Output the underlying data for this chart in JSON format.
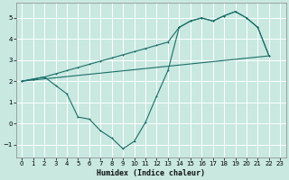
{
  "xlabel": "Humidex (Indice chaleur)",
  "bg_color": "#c8e8e0",
  "grid_color": "#ffffff",
  "line_color": "#1a6e6a",
  "xlim": [
    -0.5,
    23.5
  ],
  "ylim": [
    -1.6,
    5.7
  ],
  "xticks": [
    0,
    1,
    2,
    3,
    4,
    5,
    6,
    7,
    8,
    9,
    10,
    11,
    12,
    13,
    14,
    15,
    16,
    17,
    18,
    19,
    20,
    21,
    22,
    23
  ],
  "yticks": [
    -1,
    0,
    1,
    2,
    3,
    4,
    5
  ],
  "line1_x": [
    0,
    1,
    2,
    3,
    4,
    5,
    6,
    7,
    8,
    9,
    10,
    11,
    12,
    13,
    14,
    15,
    16,
    17,
    18,
    19,
    20,
    21,
    22
  ],
  "line1_y": [
    2.0,
    2.1,
    2.2,
    2.35,
    2.5,
    2.65,
    2.8,
    2.95,
    3.1,
    3.25,
    3.4,
    3.55,
    3.7,
    3.85,
    4.55,
    4.85,
    5.0,
    4.85,
    5.1,
    5.3,
    5.0,
    4.55,
    3.2
  ],
  "line2_x": [
    0,
    1,
    2,
    3,
    4,
    5,
    6,
    7,
    8,
    9,
    10,
    11,
    12,
    13,
    14,
    15,
    16,
    17,
    18,
    19,
    20,
    21,
    22
  ],
  "line2_y": [
    2.0,
    2.1,
    2.2,
    1.8,
    1.4,
    0.3,
    0.2,
    -0.35,
    -0.7,
    -1.2,
    -0.85,
    0.05,
    1.3,
    2.5,
    4.55,
    4.85,
    5.0,
    4.85,
    5.1,
    5.3,
    5.0,
    4.55,
    3.2
  ],
  "line3_x": [
    0,
    22
  ],
  "line3_y": [
    2.0,
    3.2
  ]
}
